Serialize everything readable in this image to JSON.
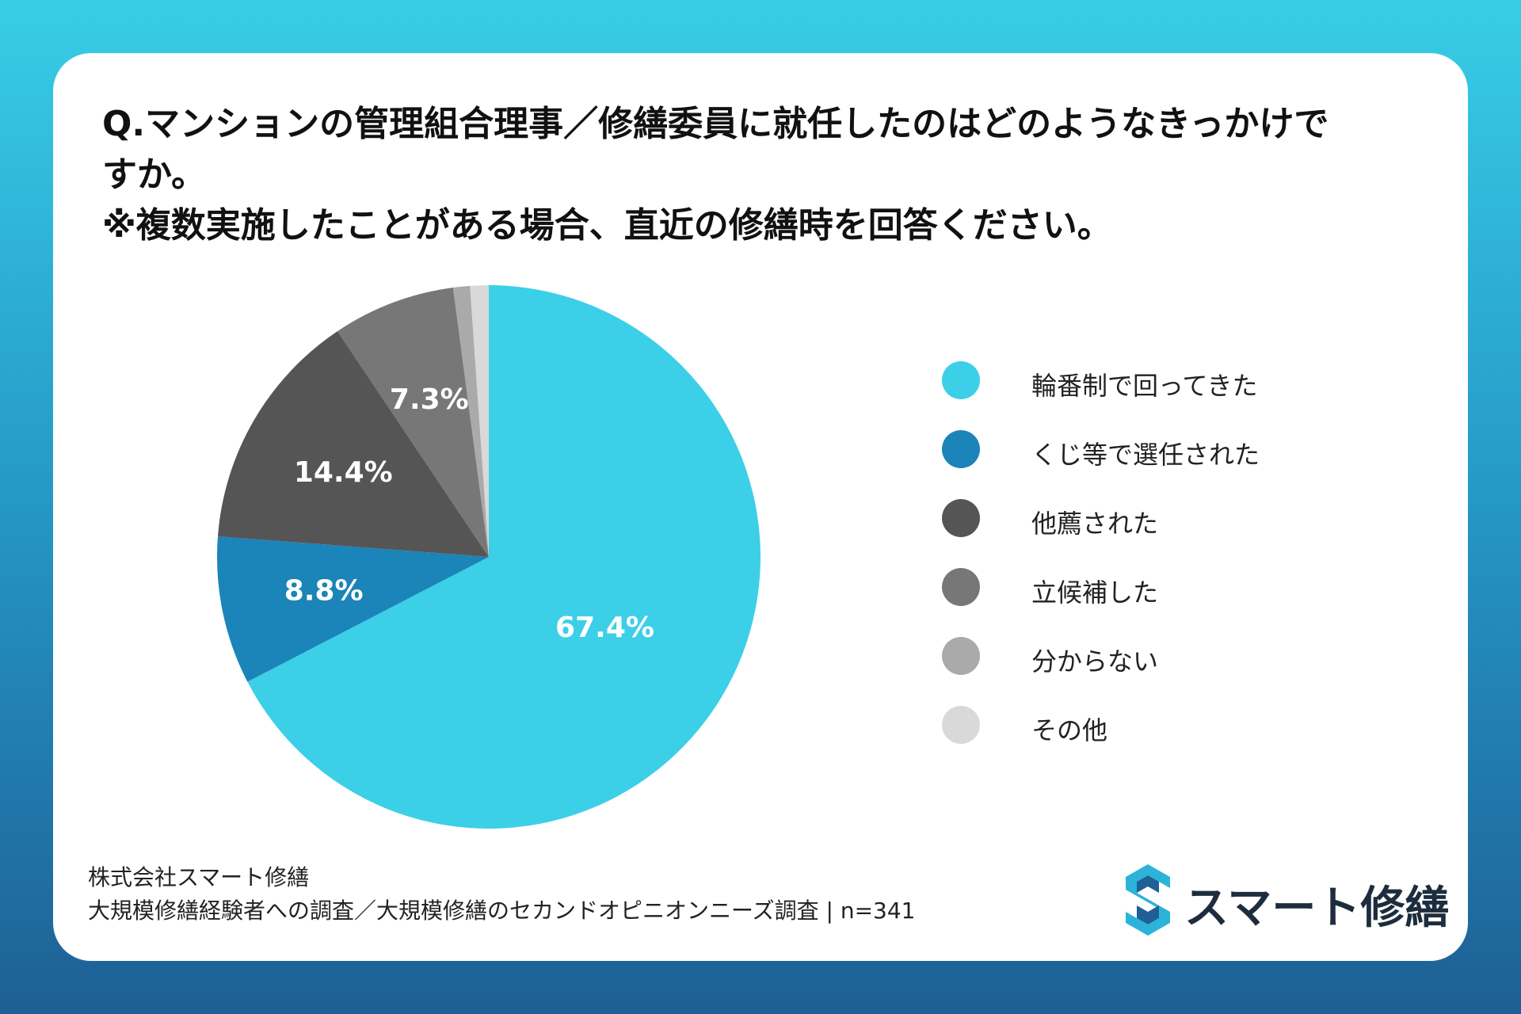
{
  "title": {
    "line1": "Q.マンションの管理組合理事／修繕委員に就任したのはどのようなきっかけで",
    "line2": "すか。",
    "line3": "※複数実施したことがある場合、直近の修繕時を回答ください。"
  },
  "chart_data": {
    "type": "pie",
    "categories": [
      "輪番制で回ってきた",
      "くじ等で選任された",
      "他薦された",
      "立候補した",
      "分からない",
      "その他"
    ],
    "values": [
      67.4,
      8.8,
      14.4,
      7.3,
      1.0,
      1.1
    ],
    "data_labels": [
      "67.4%",
      "8.8%",
      "14.4%",
      "7.3%",
      "",
      ""
    ],
    "colors": [
      "#3ccfe8",
      "#1b84b8",
      "#555555",
      "#777777",
      "#aaaaaa",
      "#d9d9d9"
    ],
    "legend_position": "right"
  },
  "legend": [
    {
      "label": "輪番制で回ってきた",
      "color": "#3ccfe8"
    },
    {
      "label": "くじ等で選任された",
      "color": "#1b84b8"
    },
    {
      "label": "他薦された",
      "color": "#555555"
    },
    {
      "label": "立候補した",
      "color": "#777777"
    },
    {
      "label": "分からない",
      "color": "#aaaaaa"
    },
    {
      "label": "その他",
      "color": "#d9d9d9"
    }
  ],
  "footer": {
    "company": "株式会社スマート修繕",
    "survey": "大規模修繕経験者への調査／大規模修繕のセカンドオピニオンニーズ調査 | n=341"
  },
  "logo": {
    "text": "スマート修繕",
    "icon": "s-logo-icon"
  }
}
